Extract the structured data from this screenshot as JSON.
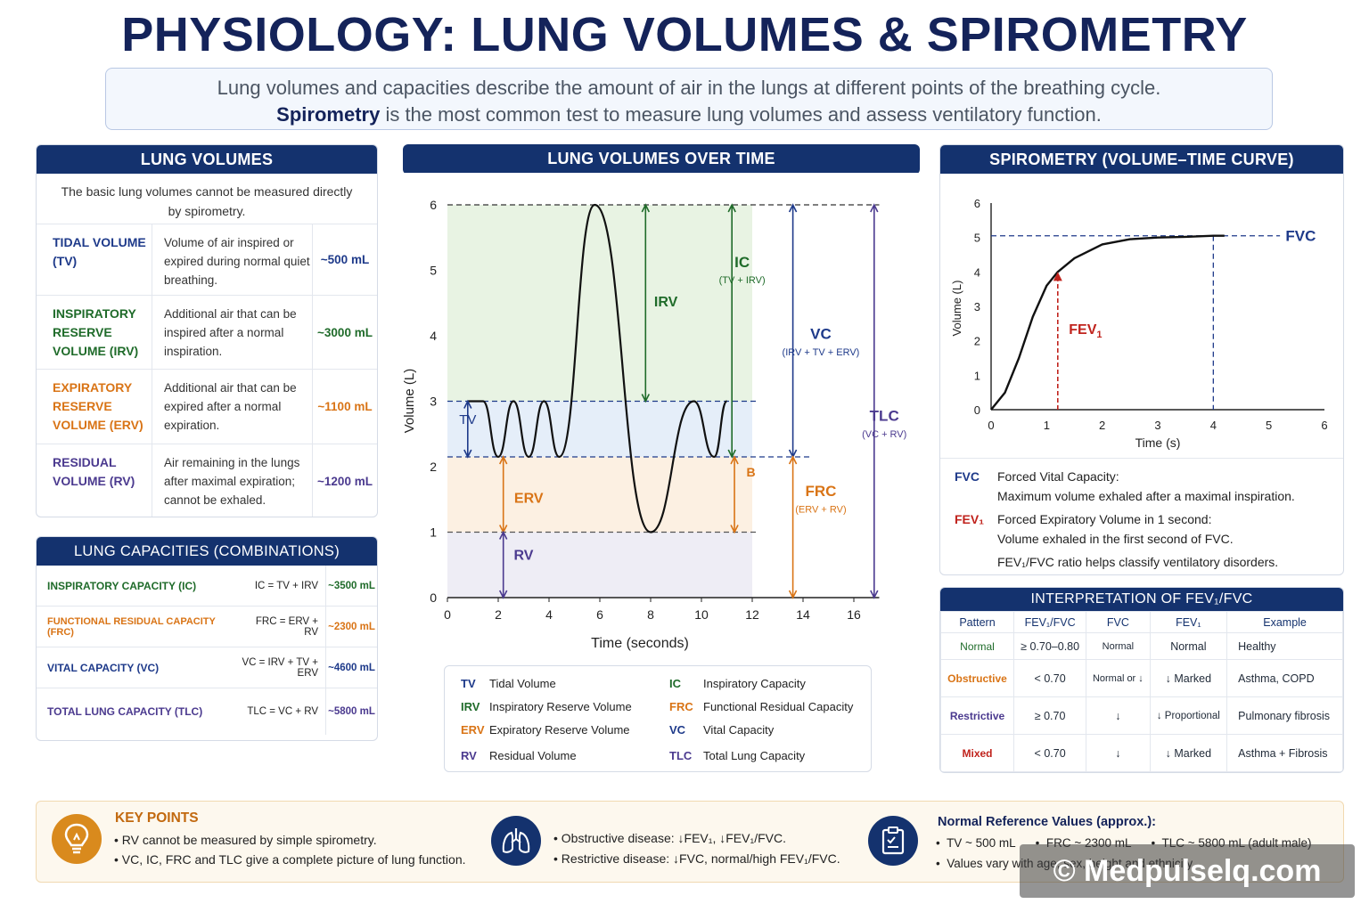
{
  "title": "PHYSIOLOGY: LUNG VOLUMES & SPIROMETRY",
  "intro": {
    "line1": "Lung volumes and capacities describe the amount of air in the lungs at different points of the breathing cycle.",
    "line2_bold": "Spirometry",
    "line2_rest": " is the most common test to measure lung volumes and assess ventilatory function."
  },
  "lung_volumes": {
    "header": "LUNG VOLUMES",
    "intro": "The basic lung volumes cannot be measured directly by spirometry.",
    "rows": [
      {
        "name": "TIDAL VOLUME (TV)",
        "desc": "Volume of air inspired or expired during normal quiet breathing.",
        "value": "~500 mL",
        "color": "#1e3a8a"
      },
      {
        "name": "INSPIRATORY RESERVE VOLUME (IRV)",
        "desc": "Additional air that can be inspired after a normal inspiration.",
        "value": "~3000 mL",
        "color": "#1f6b2a"
      },
      {
        "name": "EXPIRATORY RESERVE VOLUME (ERV)",
        "desc": "Additional air that can be expired after a normal expiration.",
        "value": "~1100 mL",
        "color": "#d97416"
      },
      {
        "name": "RESIDUAL VOLUME (RV)",
        "desc": "Air remaining in the lungs after maximal expiration; cannot be exhaled.",
        "value": "~1200 mL",
        "color": "#4b3a8f"
      }
    ]
  },
  "lung_capacities": {
    "header": "LUNG CAPACITIES (COMBINATIONS)",
    "rows": [
      {
        "name": "INSPIRATORY CAPACITY (IC)",
        "formula": "IC = TV + IRV",
        "value": "~3500 mL",
        "color": "#1f6b2a"
      },
      {
        "name": "FUNCTIONAL RESIDUAL CAPACITY (FRC)",
        "formula": "FRC = ERV + RV",
        "value": "~2300 mL",
        "color": "#d97416"
      },
      {
        "name": "VITAL CAPACITY (VC)",
        "formula": "VC = IRV + TV + ERV",
        "value": "~4600 mL",
        "color": "#1e3a8a"
      },
      {
        "name": "TOTAL LUNG CAPACITY (TLC)",
        "formula": "TLC = VC + RV",
        "value": "~5800 mL",
        "color": "#4b3a8f"
      }
    ]
  },
  "volumes_chart": {
    "header": "LUNG VOLUMES OVER TIME",
    "xlabel": "Time (seconds)",
    "ylabel": "Volume (L)",
    "x_ticks": [
      "0",
      "2",
      "4",
      "6",
      "8",
      "10",
      "12",
      "14",
      "16"
    ],
    "y_ticks": [
      "0",
      "1",
      "2",
      "3",
      "4",
      "5",
      "6"
    ],
    "labels": {
      "irv": "IRV",
      "ic": "IC",
      "ic_sub": "(TV + IRV)",
      "tv": "TV",
      "erv": "ERV",
      "rv": "RV",
      "vc": "VC",
      "vc_sub": "(IRV + TV + ERV)",
      "tlc": "TLC",
      "tlc_sub": "(VC + RV)",
      "frc": "FRC",
      "frc_sub": "(ERV + RV)",
      "b": "B"
    }
  },
  "legend": [
    {
      "abbr": "TV",
      "text": "Tidal Volume",
      "color": "#1e3a8a"
    },
    {
      "abbr": "IRV",
      "text": "Inspiratory Reserve Volume",
      "color": "#1f6b2a"
    },
    {
      "abbr": "ERV",
      "text": "Expiratory Reserve Volume",
      "color": "#d97416"
    },
    {
      "abbr": "RV",
      "text": "Residual Volume",
      "color": "#4b3a8f"
    },
    {
      "abbr": "IC",
      "text": "Inspiratory Capacity",
      "color": "#1f6b2a"
    },
    {
      "abbr": "FRC",
      "text": "Functional Residual Capacity",
      "color": "#d97416"
    },
    {
      "abbr": "VC",
      "text": "Vital Capacity",
      "color": "#1e3a8a"
    },
    {
      "abbr": "TLC",
      "text": "Total Lung Capacity",
      "color": "#4b3a8f"
    }
  ],
  "spirometry": {
    "header": "SPIROMETRY (VOLUME–TIME CURVE)",
    "xlabel": "Time (s)",
    "ylabel": "Volume (L)",
    "x_ticks": [
      "0",
      "1",
      "2",
      "3",
      "4",
      "5",
      "6"
    ],
    "y_ticks": [
      "0",
      "1",
      "2",
      "3",
      "4",
      "5",
      "6"
    ],
    "fvc_label": "FVC",
    "fev1_label": "FEV",
    "fev1_sub": "1",
    "notes": {
      "fvc_abbr": "FVC",
      "fvc_title": "Forced Vital Capacity:",
      "fvc_desc": "Maximum volume exhaled after a maximal inspiration.",
      "fev1_abbr": "FEV₁",
      "fev1_title": "Forced Expiratory Volume in 1 second:",
      "fev1_desc": "Volume exhaled in the first second of FVC.",
      "ratio": "FEV₁/FVC ratio helps classify ventilatory disorders."
    }
  },
  "chart_data": [
    {
      "type": "line",
      "title": "LUNG VOLUMES OVER TIME",
      "xlabel": "Time (seconds)",
      "ylabel": "Volume (L)",
      "xlim": [
        0,
        16
      ],
      "ylim": [
        0,
        6
      ],
      "series": [
        {
          "x": [
            0.8,
            1.4,
            2.0,
            2.6,
            3.2,
            3.8,
            4.4,
            5.8,
            8.0,
            9.7,
            10.5,
            11.0
          ],
          "y": [
            3.0,
            3.0,
            2.15,
            3.0,
            2.15,
            3.0,
            2.15,
            6.0,
            1.0,
            3.0,
            2.15,
            3.0
          ]
        }
      ],
      "reference_levels": {
        "max": 6.0,
        "tidal_top": 3.0,
        "tidal_bottom": 2.15,
        "erv_bottom": 1.0
      }
    },
    {
      "type": "line",
      "title": "SPIROMETRY (VOLUME–TIME CURVE)",
      "xlabel": "Time (s)",
      "ylabel": "Volume (L)",
      "xlim": [
        0,
        6
      ],
      "ylim": [
        0,
        6
      ],
      "series": [
        {
          "x": [
            0,
            0.25,
            0.5,
            0.75,
            1.0,
            1.2,
            1.5,
            2.0,
            2.5,
            3.0,
            3.5,
            4.0,
            4.2
          ],
          "y": [
            0,
            0.5,
            1.5,
            2.7,
            3.6,
            4.0,
            4.4,
            4.8,
            4.95,
            5.0,
            5.02,
            5.05,
            5.05
          ]
        }
      ],
      "markers": {
        "FVC": 5.05,
        "FEV1_time": 1.2,
        "FEV1": 4.0,
        "FVC_time": 4.0
      }
    }
  ],
  "interpretation": {
    "header": "INTERPRETATION OF FEV₁/FVC",
    "columns": [
      "Pattern",
      "FEV₁/FVC",
      "FVC",
      "FEV₁",
      "Example"
    ],
    "rows": [
      {
        "pattern": "Normal",
        "ratio": "≥ 0.70–0.80",
        "fvc": "Normal",
        "fev1": "Normal",
        "example": "Healthy",
        "color": "#1f6b2a"
      },
      {
        "pattern": "Obstructive",
        "ratio": "< 0.70",
        "fvc": "Normal or ↓",
        "fev1": "↓ Marked",
        "example": "Asthma, COPD",
        "color": "#d97416"
      },
      {
        "pattern": "Restrictive",
        "ratio": "≥ 0.70",
        "fvc": "↓",
        "fev1": "↓ Proportional",
        "example": "Pulmonary fibrosis",
        "color": "#4b3a8f"
      },
      {
        "pattern": "Mixed",
        "ratio": "< 0.70",
        "fvc": "↓",
        "fev1": "↓ Marked",
        "example": "Asthma + Fibrosis",
        "color": "#c0231d"
      }
    ]
  },
  "key_points": {
    "title": "KEY POINTS",
    "points": [
      "• RV cannot be measured by simple spirometry.",
      "• VC, IC, FRC and TLC give a complete picture of lung function."
    ],
    "disease": [
      "• Obstructive disease: ↓FEV₁, ↓FEV₁/FVC.",
      "• Restrictive disease: ↓FVC, normal/high FEV₁/FVC."
    ],
    "ref_title": "Normal Reference Values (approx.):",
    "ref_line1": "•  TV ~ 500 mL      •  FRC ~ 2300 mL      •  TLC ~ 5800 mL (adult male)",
    "ref_line2": "•  Values vary with age, sex, height and ethnicity."
  },
  "watermark": "© Medpulselq.com",
  "icons": [
    "lightbulb-icon",
    "lungs-icon",
    "clipboard-icon"
  ]
}
